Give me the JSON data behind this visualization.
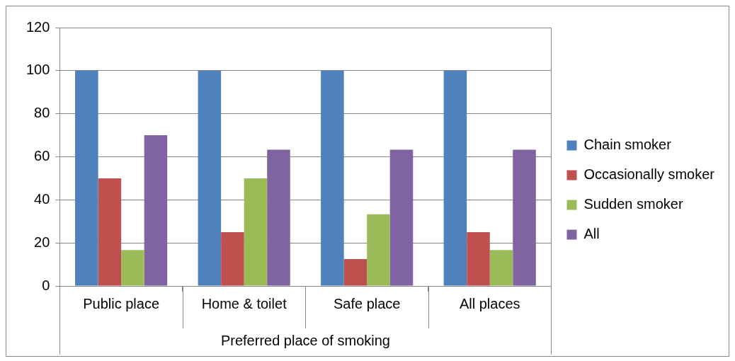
{
  "chart_data": {
    "type": "bar",
    "xlabel": "Preferred place of smoking",
    "categories": [
      "Public place",
      "Home & toilet",
      "Safe place",
      "All places"
    ],
    "series": [
      {
        "name": "Chain smoker",
        "color": "#4f81bd",
        "values": [
          100,
          100,
          100,
          100
        ]
      },
      {
        "name": "Occasionally smoker",
        "color": "#c0504d",
        "values": [
          50,
          25,
          12.5,
          25
        ]
      },
      {
        "name": "Sudden smoker",
        "color": "#9bbb59",
        "values": [
          16.7,
          50,
          33.3,
          16.7
        ]
      },
      {
        "name": "All",
        "color": "#8064a2",
        "values": [
          70,
          63.3,
          63.3,
          63.3
        ]
      }
    ],
    "ylim": [
      0,
      120
    ],
    "yticks": [
      0,
      20,
      40,
      60,
      80,
      100,
      120
    ],
    "grid": "y",
    "legend": "right"
  }
}
